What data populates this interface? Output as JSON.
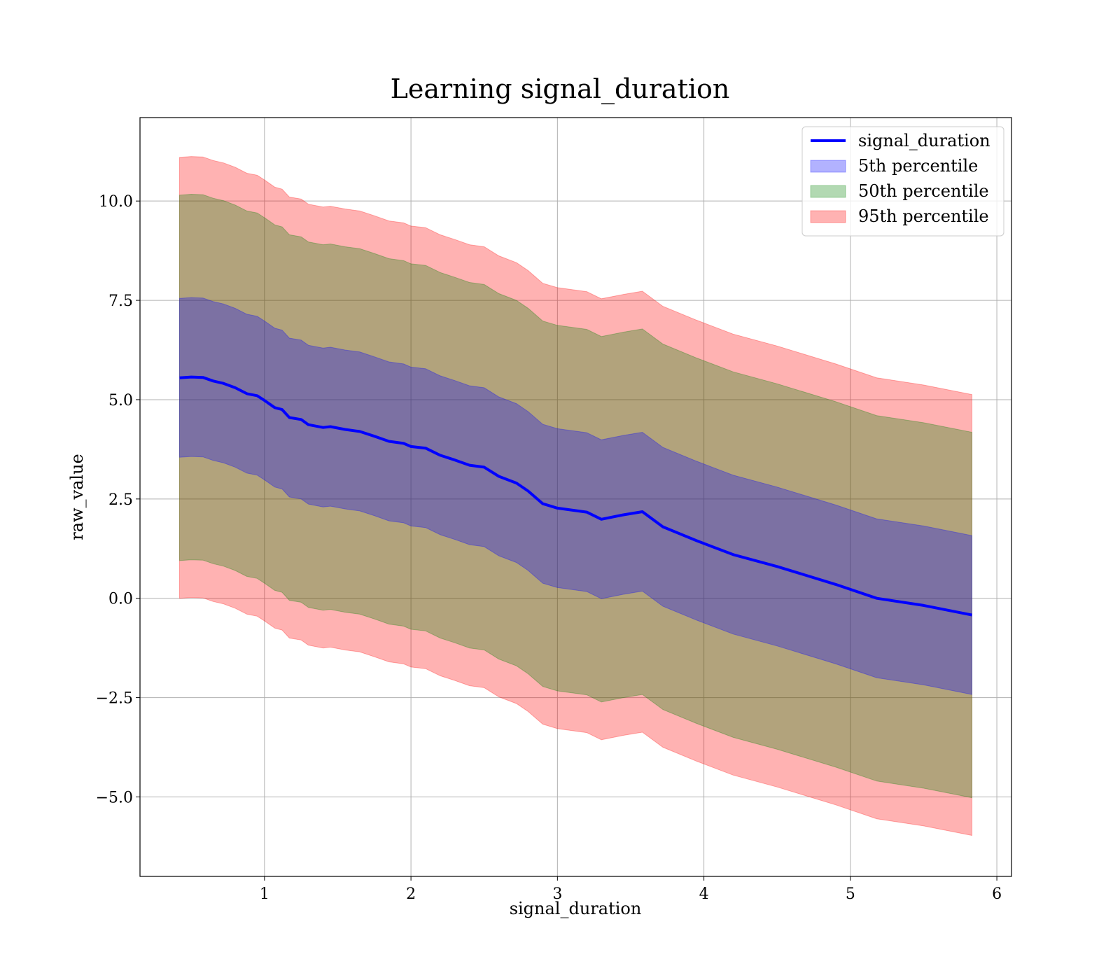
{
  "chart_data": {
    "type": "area",
    "title": "Learning signal_duration",
    "xlabel": "signal_duration",
    "ylabel": "raw_value",
    "xlim": [
      0.15,
      6.1
    ],
    "ylim": [
      -7.0,
      12.1
    ],
    "xticks": [
      1,
      2,
      3,
      4,
      5,
      6
    ],
    "xtick_labels": [
      "1",
      "2",
      "3",
      "4",
      "5",
      "6"
    ],
    "yticks": [
      -5.0,
      -2.5,
      0.0,
      2.5,
      5.0,
      7.5,
      10.0
    ],
    "ytick_labels": [
      "−5.0",
      "−2.5",
      "0.0",
      "2.5",
      "5.0",
      "7.5",
      "10.0"
    ],
    "grid": true,
    "legend_position": "top-right",
    "x": [
      0.42,
      0.5,
      0.58,
      0.65,
      0.72,
      0.8,
      0.88,
      0.95,
      1.0,
      1.07,
      1.12,
      1.17,
      1.25,
      1.3,
      1.4,
      1.45,
      1.55,
      1.65,
      1.75,
      1.85,
      1.95,
      2.0,
      2.1,
      2.2,
      2.3,
      2.4,
      2.5,
      2.6,
      2.72,
      2.8,
      2.9,
      3.0,
      3.2,
      3.3,
      3.45,
      3.58,
      3.72,
      3.95,
      4.2,
      4.5,
      4.9,
      5.18,
      5.5,
      5.83
    ],
    "series": [
      {
        "name": "signal_duration",
        "role": "line",
        "color": "#0000ff",
        "values": [
          5.55,
          5.57,
          5.56,
          5.47,
          5.41,
          5.3,
          5.15,
          5.1,
          4.98,
          4.8,
          4.75,
          4.55,
          4.5,
          4.37,
          4.3,
          4.32,
          4.25,
          4.2,
          4.08,
          3.95,
          3.9,
          3.82,
          3.78,
          3.6,
          3.48,
          3.35,
          3.3,
          3.07,
          2.9,
          2.7,
          2.38,
          2.27,
          2.17,
          1.99,
          2.1,
          2.18,
          1.8,
          1.45,
          1.1,
          0.8,
          0.35,
          0.0,
          -0.18,
          -0.42
        ]
      },
      {
        "name": "5th percentile",
        "role": "band",
        "color": "#0000ff",
        "offset": 2.0
      },
      {
        "name": "50th percentile",
        "role": "band",
        "color": "#008000",
        "offset": 4.6
      },
      {
        "name": "95th percentile",
        "role": "band",
        "color": "#ff0000",
        "offset": 5.55
      }
    ]
  }
}
